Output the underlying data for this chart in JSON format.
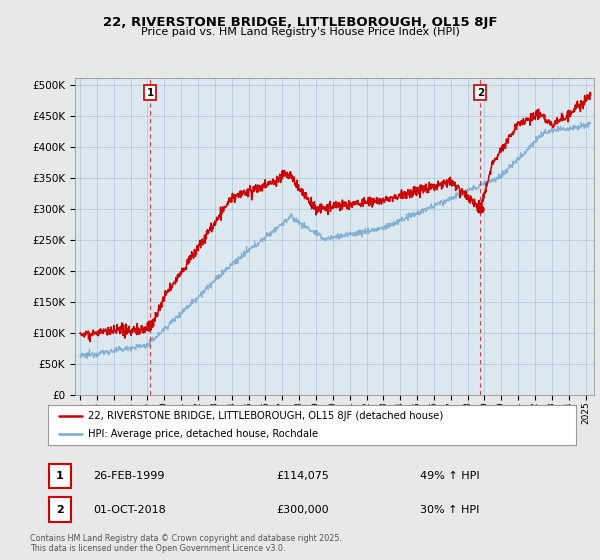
{
  "title": "22, RIVERSTONE BRIDGE, LITTLEBOROUGH, OL15 8JF",
  "subtitle": "Price paid vs. HM Land Registry's House Price Index (HPI)",
  "ylim": [
    0,
    510000
  ],
  "yticks": [
    0,
    50000,
    100000,
    150000,
    200000,
    250000,
    300000,
    350000,
    400000,
    450000,
    500000
  ],
  "xlim_start": 1994.7,
  "xlim_end": 2025.5,
  "red_color": "#cc0000",
  "blue_color": "#7aaad0",
  "marker1_date": 1999.15,
  "marker1_price": 114075,
  "marker1_label": "1",
  "marker1_text": "26-FEB-1999",
  "marker1_price_text": "£114,075",
  "marker1_hpi_text": "49% ↑ HPI",
  "marker2_date": 2018.75,
  "marker2_price": 300000,
  "marker2_label": "2",
  "marker2_text": "01-OCT-2018",
  "marker2_price_text": "£300,000",
  "marker2_hpi_text": "30% ↑ HPI",
  "legend_label_red": "22, RIVERSTONE BRIDGE, LITTLEBOROUGH, OL15 8JF (detached house)",
  "legend_label_blue": "HPI: Average price, detached house, Rochdale",
  "footer": "Contains HM Land Registry data © Crown copyright and database right 2025.\nThis data is licensed under the Open Government Licence v3.0.",
  "background_color": "#e8e8e8",
  "plot_bg_color": "#dce8f0",
  "grid_color": "#b0c4d8"
}
